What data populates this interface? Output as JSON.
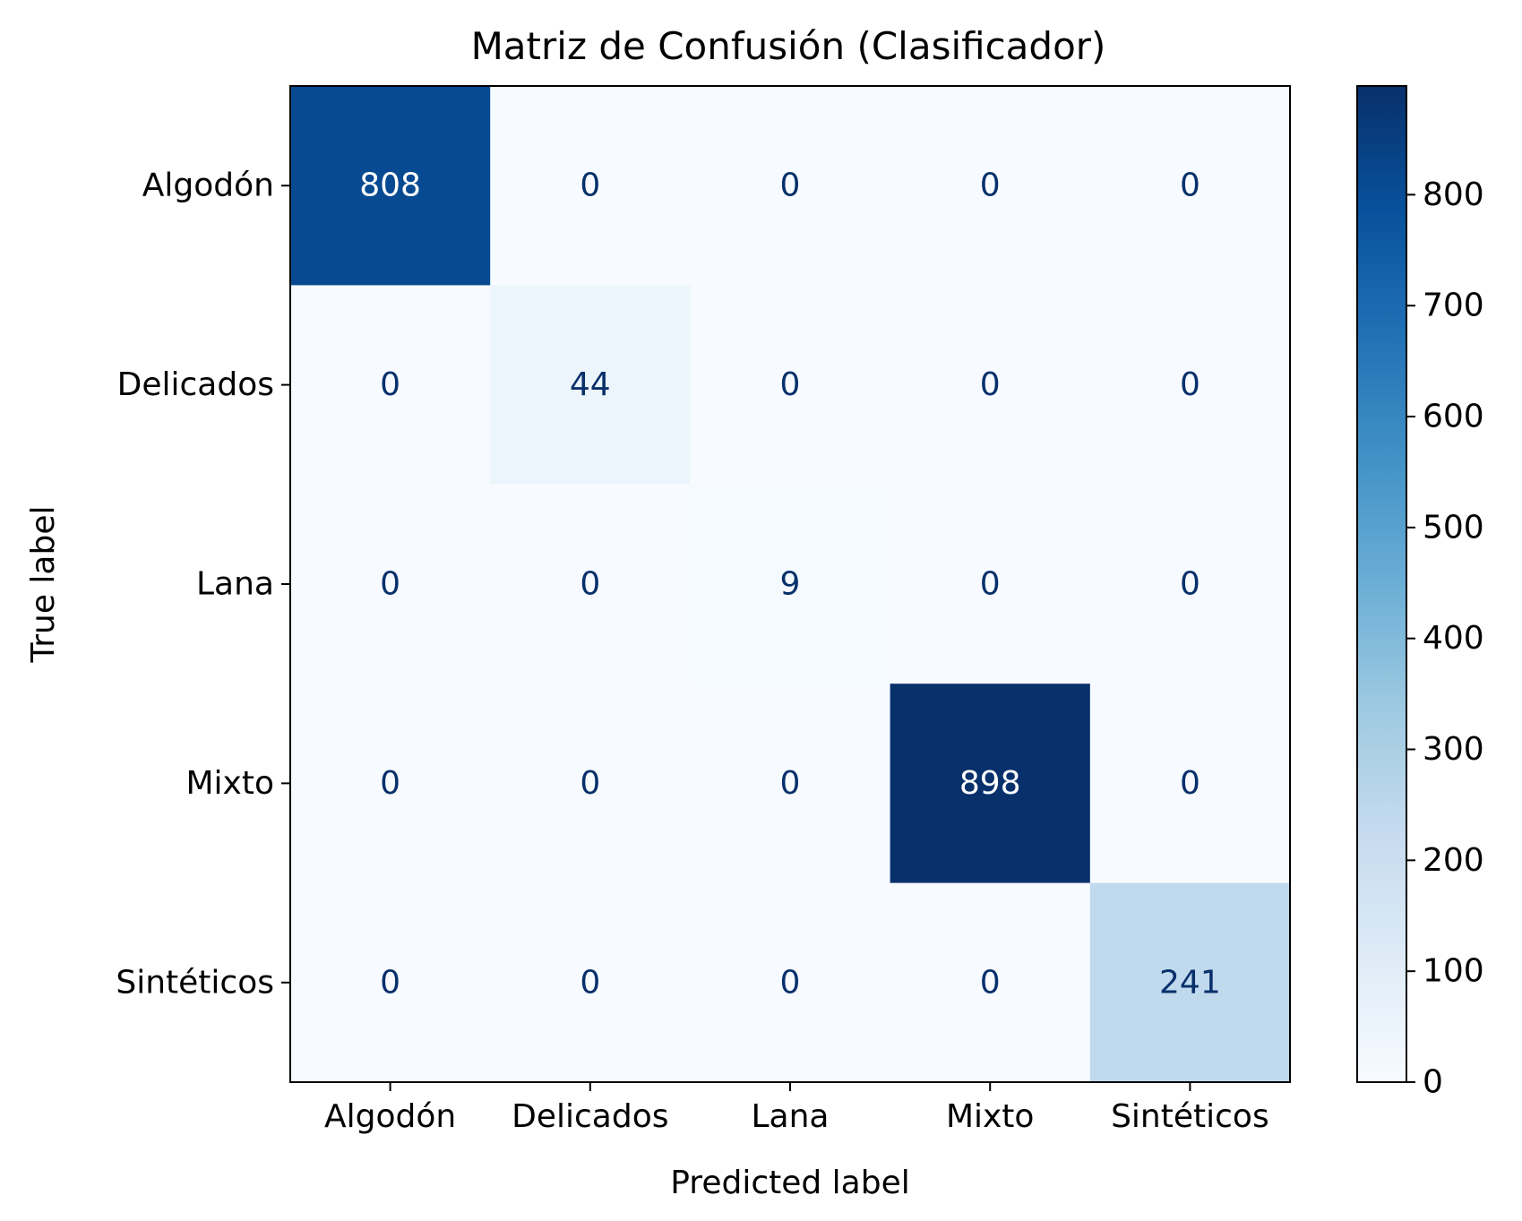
{
  "chart_data": {
    "type": "heatmap",
    "title": "Matriz de Confusión (Clasificador)",
    "xlabel": "Predicted label",
    "ylabel": "True label",
    "x_categories": [
      "Algodón",
      "Delicados",
      "Lana",
      "Mixto",
      "Sintéticos"
    ],
    "y_categories": [
      "Algodón",
      "Delicados",
      "Lana",
      "Mixto",
      "Sintéticos"
    ],
    "values": [
      [
        808,
        0,
        0,
        0,
        0
      ],
      [
        0,
        44,
        0,
        0,
        0
      ],
      [
        0,
        0,
        9,
        0,
        0
      ],
      [
        0,
        0,
        0,
        898,
        0
      ],
      [
        0,
        0,
        0,
        0,
        241
      ]
    ],
    "colormap": "Blues",
    "colorbar": {
      "range": [
        0,
        898
      ],
      "ticks": [
        0,
        100,
        200,
        300,
        400,
        500,
        600,
        700,
        800
      ],
      "tick_labels": [
        "0",
        "100",
        "200",
        "300",
        "400",
        "500",
        "600",
        "700",
        "800"
      ]
    },
    "text_colors": {
      "light": "#ffffff",
      "dark": "#08306b"
    }
  }
}
